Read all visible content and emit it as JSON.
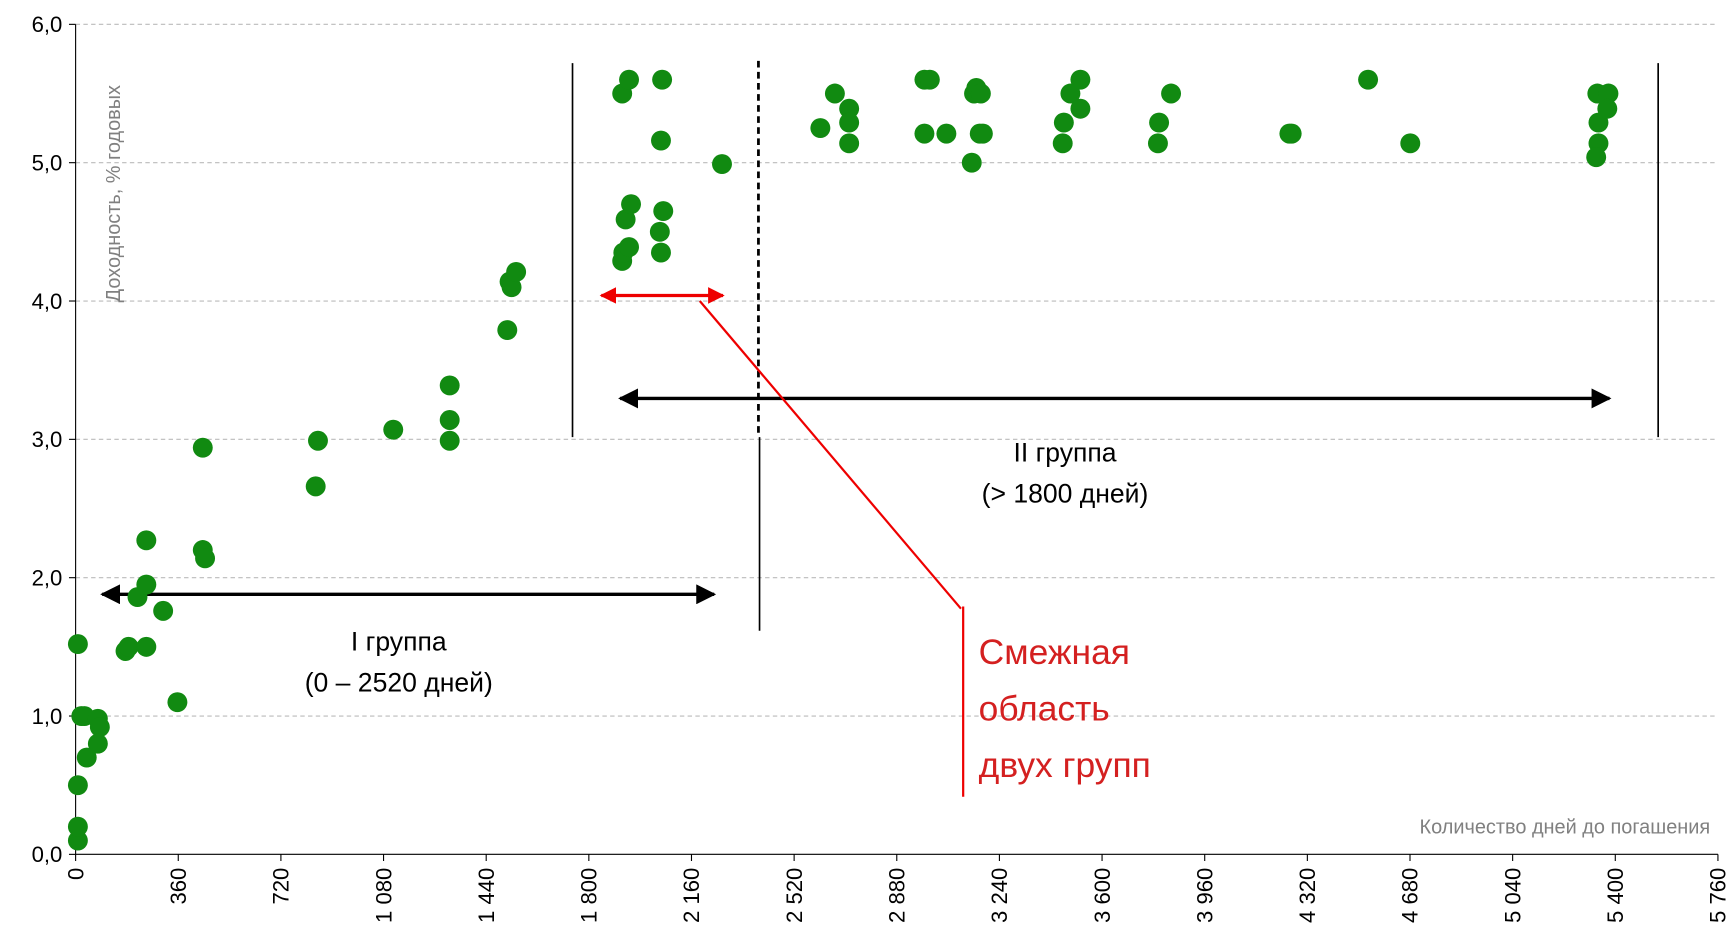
{
  "chart_data": {
    "type": "scatter",
    "x_label": "Количество дней до погашения",
    "y_label": "Доходность, % годовых",
    "annotations": [
      "I группа",
      "(0 – 2520 дней)",
      "II группа",
      "(> 1800 дней)",
      "Смежная",
      "область",
      "двух групп"
    ],
    "xlim": [
      0,
      5760
    ],
    "ylim": [
      0,
      6
    ],
    "xticks": [
      0,
      360,
      720,
      {
        "value": 1080,
        "label": "1 080"
      },
      {
        "value": 1440,
        "label": "1 440"
      },
      {
        "value": 1800,
        "label": "1 800"
      },
      {
        "value": 2160,
        "label": "2 160"
      },
      {
        "value": 2520,
        "label": "2 520"
      },
      {
        "value": 2880,
        "label": "2 880"
      },
      {
        "value": 3240,
        "label": "3 240"
      },
      {
        "value": 3600,
        "label": "3 600"
      },
      {
        "value": 3960,
        "label": "3 960"
      },
      {
        "value": 4320,
        "label": "4 320"
      },
      {
        "value": 4680,
        "label": "4 680"
      },
      {
        "value": 5040,
        "label": "5 040"
      },
      {
        "value": 5400,
        "label": "5 400"
      },
      {
        "value": 5760,
        "label": "5 760"
      }
    ],
    "yticks": [
      {
        "value": 0,
        "label": "0,0"
      },
      {
        "value": 1,
        "label": "1,0"
      },
      {
        "value": 2,
        "label": "2,0"
      },
      {
        "value": 3,
        "label": "3,0"
      },
      {
        "value": 4,
        "label": "4,0"
      },
      {
        "value": 5,
        "label": "5,0"
      },
      {
        "value": 6,
        "label": "6,0"
      }
    ],
    "grid": true,
    "series": [
      {
        "color": "#118a11",
        "x": [
          8,
          8,
          8,
          8,
          20,
          31,
          39,
          78,
          85,
          78,
          175,
          186,
          217,
          248,
          248,
          248,
          307,
          357,
          446,
          446,
          454,
          842,
          850,
          1114,
          1312,
          1312,
          1312,
          1514,
          1522,
          1529,
          1545,
          1917,
          1941,
          1917,
          1921,
          1929,
          1941,
          1948,
          2057,
          2053,
          2049,
          2053,
          2061,
          2267,
          2612,
          2663,
          2713,
          2713,
          2713,
          2977,
          2996,
          2977,
          3054,
          3151,
          3159,
          3175,
          3143,
          3171,
          3182,
          3466,
          3462,
          3489,
          3524,
          3524,
          3800,
          3796,
          3842,
          4257,
          4265,
          4533,
          4681,
          5337,
          5376,
          5341,
          5372,
          5341,
          5333
        ],
        "values": [
          0.1,
          0.2,
          0.5,
          1.52,
          1.0,
          1.0,
          0.7,
          0.98,
          0.92,
          0.8,
          1.47,
          1.5,
          1.86,
          1.95,
          2.27,
          1.5,
          1.76,
          1.1,
          2.94,
          2.2,
          2.14,
          2.66,
          2.99,
          3.07,
          3.39,
          3.14,
          2.99,
          3.79,
          4.14,
          4.1,
          4.21,
          5.5,
          5.6,
          4.29,
          4.35,
          4.59,
          4.39,
          4.7,
          5.6,
          5.16,
          4.5,
          4.35,
          4.65,
          4.99,
          5.25,
          5.5,
          5.39,
          5.29,
          5.14,
          5.6,
          5.6,
          5.21,
          5.21,
          5.5,
          5.54,
          5.5,
          5.0,
          5.21,
          5.21,
          5.29,
          5.14,
          5.5,
          5.6,
          5.39,
          5.29,
          5.14,
          5.5,
          5.21,
          5.21,
          5.6,
          5.14,
          5.5,
          5.5,
          5.29,
          5.39,
          5.14,
          5.04
        ]
      }
    ]
  }
}
